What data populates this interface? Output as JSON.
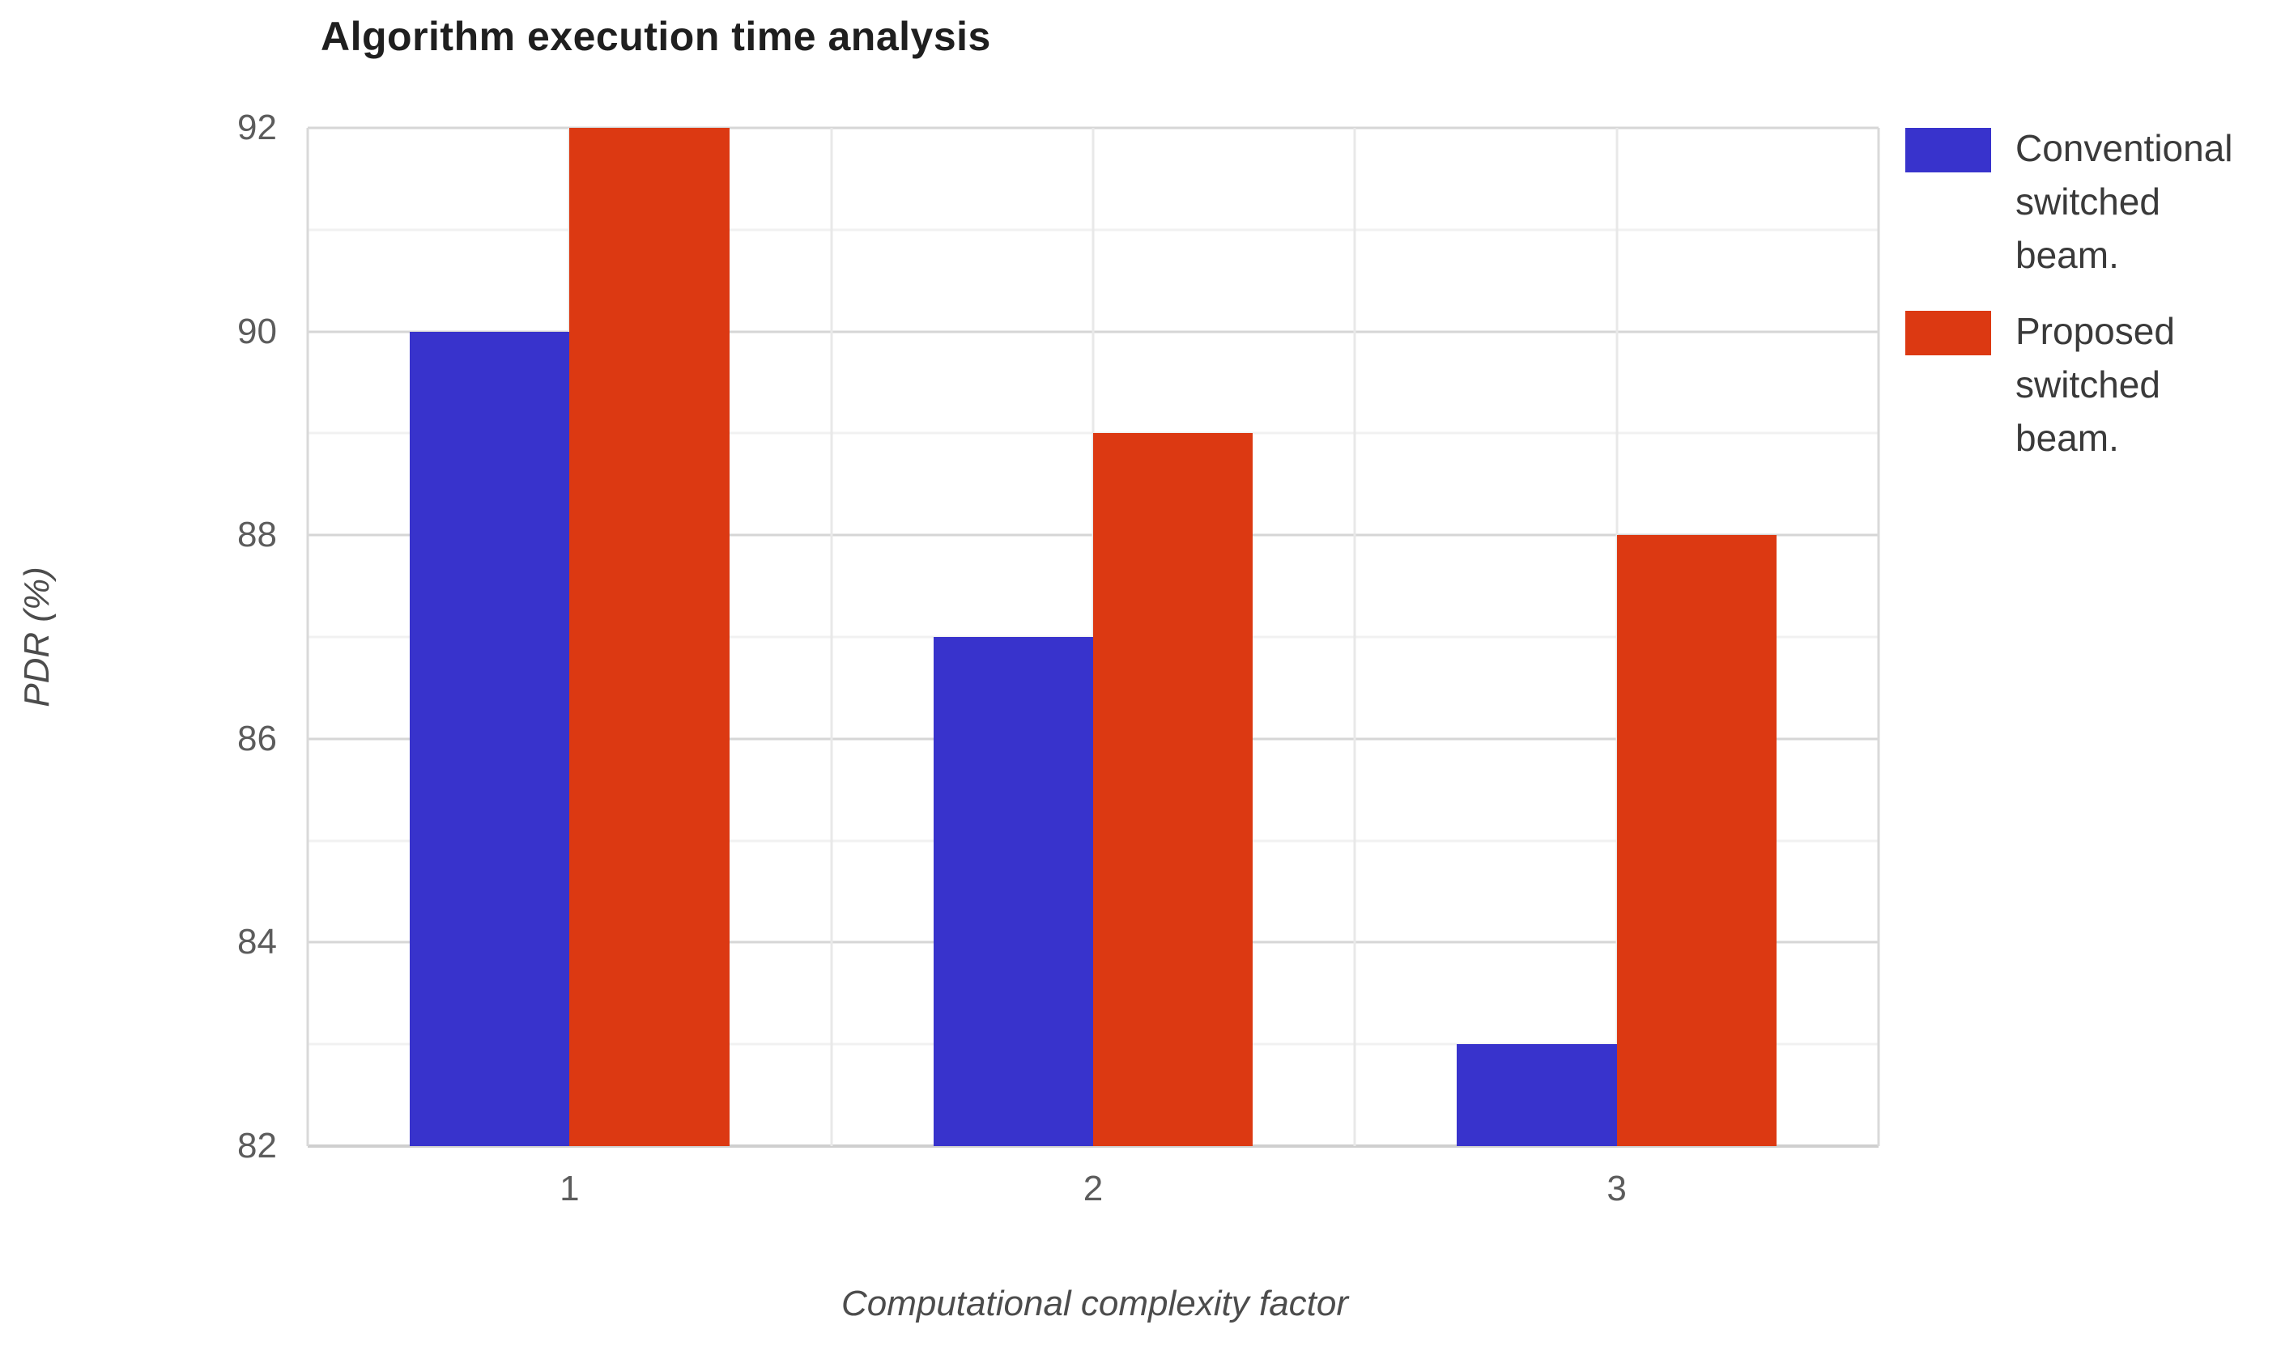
{
  "page": {
    "background": "#ffffff"
  },
  "chart_data": {
    "type": "bar",
    "title": "Algorithm execution time analysis",
    "xlabel": "Computational complexity factor",
    "ylabel": "PDR (%)",
    "categories": [
      "1",
      "2",
      "3"
    ],
    "series": [
      {
        "name": "Conventional switched beam.",
        "color": "#3833cc",
        "values": [
          90,
          87,
          83
        ]
      },
      {
        "name": "Proposed switched beam.",
        "color": "#dc3912",
        "values": [
          92,
          89,
          88
        ]
      }
    ],
    "ylim": [
      82,
      92
    ],
    "y_major_ticks": [
      82,
      84,
      86,
      88,
      90,
      92
    ],
    "y_minor_step": 1,
    "grid": "on",
    "legend_position": "right"
  }
}
